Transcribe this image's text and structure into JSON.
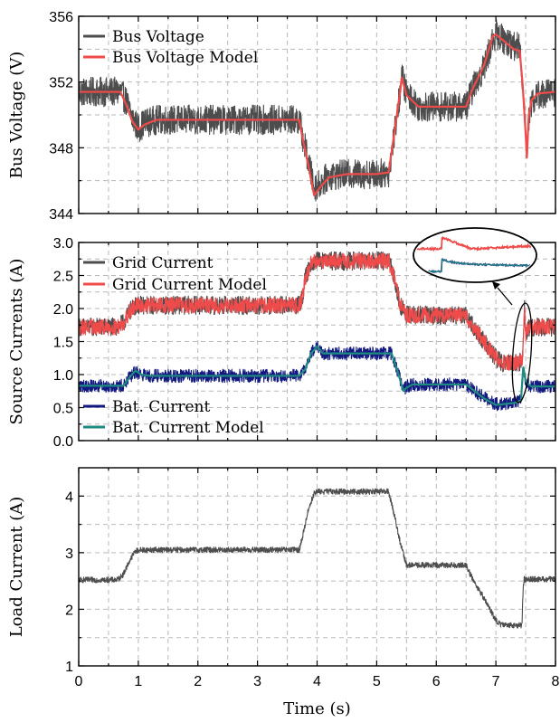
{
  "chart_data": [
    {
      "type": "line",
      "ylabel": "Bus Voltage (V)",
      "xlim": [
        0,
        8
      ],
      "ylim": [
        344,
        356
      ],
      "yticks": [
        344,
        348,
        352,
        356
      ],
      "ytick_labels": [
        "344",
        "348",
        "352",
        "356"
      ],
      "grid": true,
      "legend_position": "top-left",
      "series": [
        {
          "name": "Bus Voltage",
          "color": "#4d4d4d",
          "noise": 0.9,
          "x": [
            0,
            0.7,
            0.8,
            0.9,
            1.0,
            1.1,
            1.3,
            1.6,
            2.0,
            3.0,
            3.7,
            3.75,
            3.85,
            3.95,
            4.05,
            4.2,
            4.5,
            5.0,
            5.2,
            5.3,
            5.4,
            5.42,
            5.5,
            5.7,
            6.0,
            6.5,
            6.6,
            6.8,
            6.95,
            7.0,
            7.3,
            7.4,
            7.45,
            7.5,
            7.52,
            7.55,
            7.6,
            7.7,
            8.0
          ],
          "y": [
            351.4,
            351.4,
            350.8,
            349.8,
            349.2,
            349.5,
            349.7,
            349.7,
            349.7,
            349.7,
            349.7,
            348.8,
            347.2,
            345.6,
            345.8,
            346.3,
            346.4,
            346.4,
            346.5,
            349.0,
            351.5,
            352.4,
            351.3,
            350.5,
            350.5,
            350.5,
            351.5,
            352.9,
            354.6,
            354.9,
            354.2,
            354.1,
            352.0,
            349.0,
            347.6,
            349.8,
            350.8,
            351.2,
            351.4
          ]
        },
        {
          "name": "Bus Voltage Model",
          "color": "#ef4b4b",
          "noise": 0,
          "x": [
            0,
            0.7,
            0.8,
            0.9,
            1.0,
            1.1,
            1.3,
            1.6,
            2.0,
            3.0,
            3.7,
            3.75,
            3.85,
            3.95,
            4.05,
            4.2,
            4.5,
            5.0,
            5.2,
            5.3,
            5.4,
            5.42,
            5.5,
            5.7,
            6.0,
            6.5,
            6.6,
            6.8,
            6.95,
            7.0,
            7.3,
            7.4,
            7.45,
            7.5,
            7.52,
            7.55,
            7.6,
            7.7,
            8.0
          ],
          "y": [
            351.4,
            351.4,
            350.6,
            349.6,
            349.1,
            349.4,
            349.7,
            349.7,
            349.7,
            349.7,
            349.7,
            348.7,
            347.0,
            345.1,
            345.6,
            346.2,
            346.4,
            346.4,
            346.5,
            349.0,
            351.6,
            352.3,
            351.2,
            350.5,
            350.5,
            350.5,
            351.5,
            353.0,
            354.8,
            354.9,
            354.0,
            353.9,
            351.8,
            348.8,
            347.4,
            349.9,
            350.9,
            351.3,
            351.4
          ]
        }
      ]
    },
    {
      "type": "line",
      "ylabel": "Source Currents (A)",
      "xlim": [
        0,
        8
      ],
      "ylim": [
        0,
        3
      ],
      "yticks": [
        0,
        0.5,
        1,
        1.5,
        2,
        2.5,
        3
      ],
      "ytick_labels": [
        "0.0",
        "0.5",
        "1.0",
        "1.5",
        "2.0",
        "2.5",
        "3.0"
      ],
      "grid": true,
      "legend_position": "top-left and bottom-left",
      "inset": "zoomed view of transient near t = 7.5 s",
      "series": [
        {
          "name": "Grid Current",
          "color": "#4d4d4d",
          "noise": 0.14,
          "x": [
            0,
            0.65,
            0.75,
            0.85,
            0.95,
            1.05,
            1.2,
            2.0,
            3.0,
            3.7,
            3.75,
            3.8,
            3.9,
            3.95,
            4.0,
            4.5,
            5.0,
            5.2,
            5.3,
            5.4,
            5.5,
            6.0,
            6.5,
            6.6,
            6.8,
            7.0,
            7.1,
            7.3,
            7.4,
            7.45,
            7.48,
            7.5,
            7.55,
            7.65,
            8.0
          ],
          "y": [
            1.72,
            1.72,
            1.78,
            1.95,
            2.04,
            2.05,
            2.05,
            2.05,
            2.05,
            2.05,
            2.15,
            2.45,
            2.68,
            2.72,
            2.72,
            2.72,
            2.72,
            2.72,
            2.45,
            2.05,
            1.9,
            1.9,
            1.9,
            1.75,
            1.5,
            1.25,
            1.18,
            1.18,
            1.18,
            1.25,
            2.0,
            1.6,
            1.7,
            1.72,
            1.72
          ]
        },
        {
          "name": "Grid Current Model",
          "color": "#ef4b4b",
          "noise": 0.12,
          "x": [
            0,
            0.65,
            0.75,
            0.85,
            0.95,
            1.05,
            1.2,
            2.0,
            3.0,
            3.7,
            3.75,
            3.8,
            3.9,
            3.95,
            4.0,
            4.5,
            5.0,
            5.2,
            5.3,
            5.4,
            5.5,
            6.0,
            6.5,
            6.6,
            6.8,
            7.0,
            7.1,
            7.3,
            7.4,
            7.45,
            7.48,
            7.5,
            7.55,
            7.65,
            8.0
          ],
          "y": [
            1.72,
            1.72,
            1.78,
            1.95,
            2.04,
            2.05,
            2.05,
            2.05,
            2.05,
            2.05,
            2.15,
            2.45,
            2.68,
            2.72,
            2.72,
            2.72,
            2.72,
            2.72,
            2.45,
            2.05,
            1.9,
            1.9,
            1.9,
            1.75,
            1.5,
            1.25,
            1.18,
            1.18,
            1.18,
            1.25,
            2.0,
            1.6,
            1.7,
            1.72,
            1.72
          ]
        },
        {
          "name": "Bat. Current",
          "color": "#121a80",
          "noise": 0.1,
          "x": [
            0,
            0.75,
            0.85,
            0.95,
            1.05,
            1.2,
            2.0,
            3.0,
            3.7,
            3.8,
            3.9,
            4.0,
            4.1,
            4.5,
            5.0,
            5.25,
            5.35,
            5.45,
            5.5,
            5.6,
            6.0,
            6.5,
            6.6,
            6.8,
            7.0,
            7.3,
            7.42,
            7.46,
            7.5,
            7.55,
            7.6,
            8.0
          ],
          "y": [
            0.83,
            0.83,
            0.95,
            1.04,
            1.0,
            0.98,
            0.98,
            0.98,
            0.98,
            1.08,
            1.32,
            1.42,
            1.32,
            1.32,
            1.32,
            1.32,
            1.05,
            0.78,
            0.82,
            0.85,
            0.85,
            0.85,
            0.78,
            0.65,
            0.55,
            0.58,
            0.6,
            1.1,
            0.9,
            0.85,
            0.82,
            0.82
          ]
        },
        {
          "name": "Bat. Current Model",
          "color": "#1f8a80",
          "noise": 0,
          "x": [
            0,
            0.75,
            0.85,
            0.95,
            1.05,
            1.2,
            2.0,
            3.0,
            3.7,
            3.8,
            3.9,
            4.0,
            4.1,
            4.5,
            5.0,
            5.25,
            5.35,
            5.45,
            5.5,
            5.6,
            6.0,
            6.5,
            6.6,
            6.8,
            7.0,
            7.3,
            7.42,
            7.46,
            7.5,
            7.55,
            7.6,
            8.0
          ],
          "y": [
            0.83,
            0.83,
            0.95,
            1.06,
            1.0,
            0.98,
            0.98,
            0.98,
            0.98,
            1.08,
            1.32,
            1.43,
            1.32,
            1.32,
            1.32,
            1.32,
            1.05,
            0.75,
            0.8,
            0.85,
            0.85,
            0.85,
            0.78,
            0.64,
            0.54,
            0.57,
            0.6,
            1.12,
            0.9,
            0.85,
            0.82,
            0.82
          ]
        }
      ]
    },
    {
      "type": "line",
      "ylabel": "Load Current (A)",
      "xlabel": "Time (s)",
      "xlim": [
        0,
        8
      ],
      "xticks": [
        0,
        1,
        2,
        3,
        4,
        5,
        6,
        7,
        8
      ],
      "ylim": [
        1,
        4.5
      ],
      "yticks": [
        1,
        2,
        3,
        4
      ],
      "ytick_labels": [
        "1",
        "2",
        "3",
        "4"
      ],
      "grid": true,
      "series": [
        {
          "name": "",
          "color": "#4d4d4d",
          "noise": 0.05,
          "x": [
            0,
            0.65,
            0.75,
            0.85,
            0.95,
            1.05,
            3.7,
            3.75,
            3.85,
            3.95,
            4.0,
            5.2,
            5.3,
            5.4,
            5.5,
            6.5,
            6.6,
            6.8,
            7.0,
            7.1,
            7.44,
            7.45,
            7.47,
            8.0
          ],
          "y": [
            2.52,
            2.52,
            2.62,
            2.85,
            3.03,
            3.05,
            3.05,
            3.25,
            3.75,
            4.05,
            4.08,
            4.08,
            3.65,
            3.15,
            2.78,
            2.78,
            2.55,
            2.2,
            1.8,
            1.72,
            1.72,
            2.2,
            2.53,
            2.53
          ]
        }
      ]
    }
  ]
}
